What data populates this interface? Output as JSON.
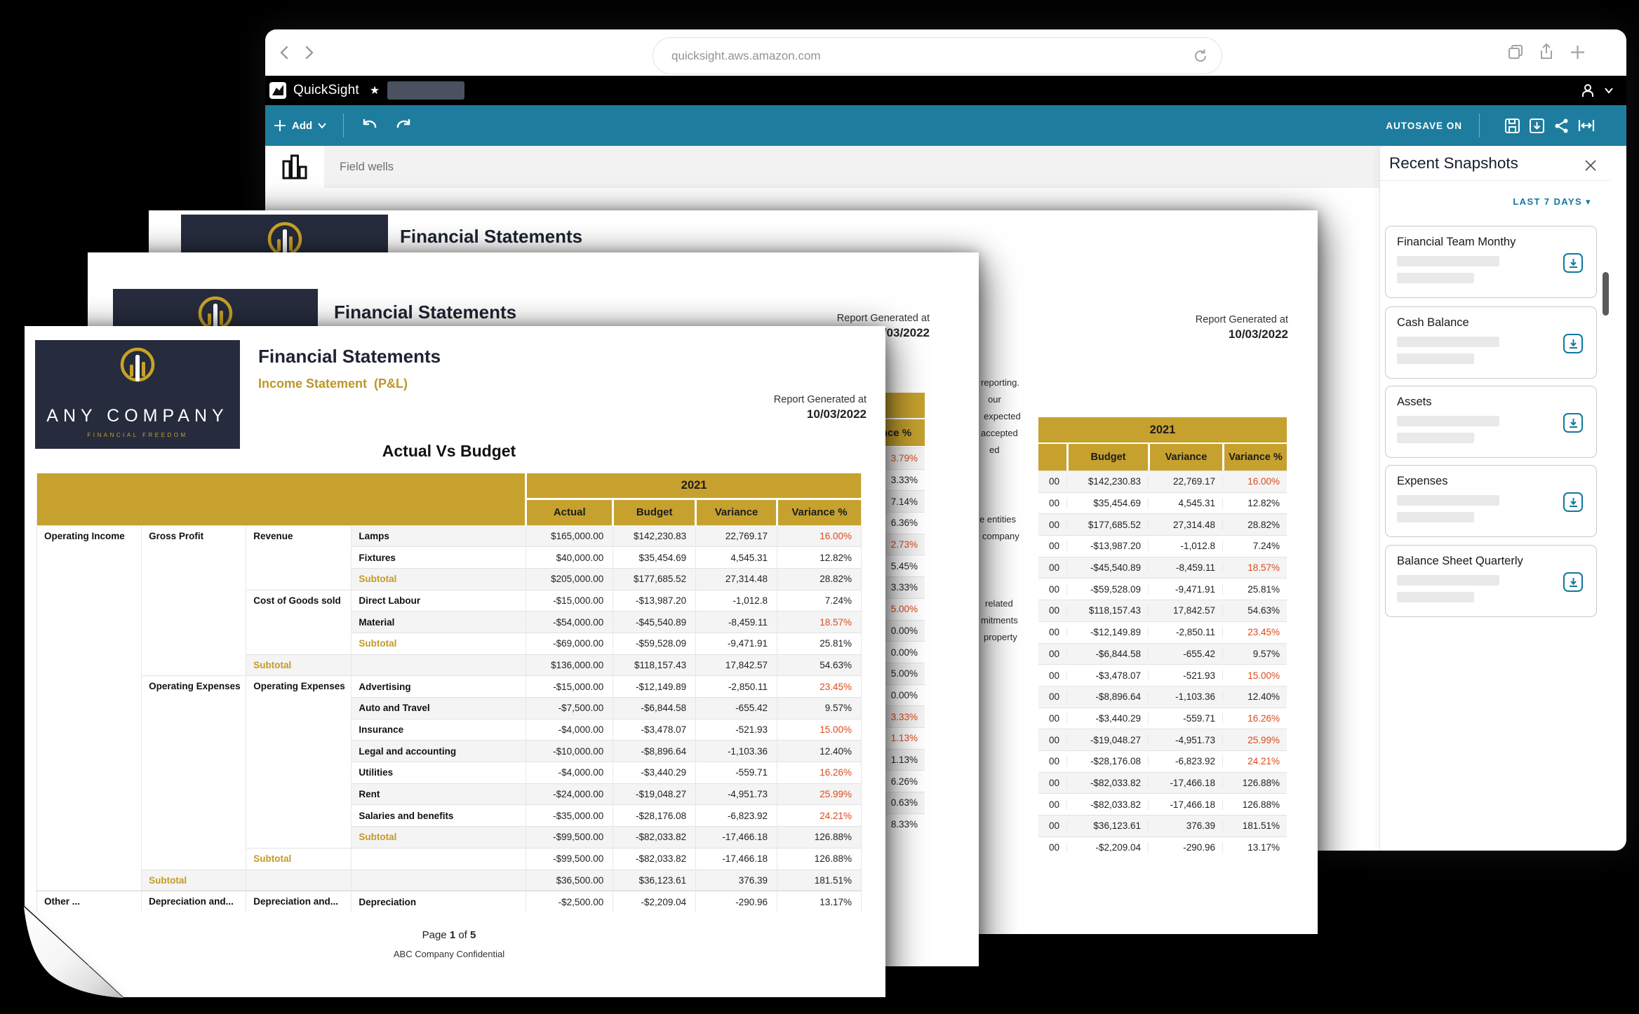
{
  "browser": {
    "url": "quicksight.aws.amazon.com"
  },
  "app_bar": {
    "app_name": "QuickSight"
  },
  "toolbar": {
    "add_label": "Add",
    "autosave_label": "AUTOSAVE ON"
  },
  "field_wells": {
    "label": "Field wells"
  },
  "snapshots_panel": {
    "title": "Recent Snapshots",
    "filter_label": "LAST 7 DAYS ▾",
    "cards": [
      {
        "title": "Financial Team Monthy"
      },
      {
        "title": "Cash Balance"
      },
      {
        "title": "Assets"
      },
      {
        "title": "Expenses"
      },
      {
        "title": "Balance Sheet Quarterly"
      }
    ]
  },
  "front_page": {
    "brand": {
      "name": "ANY COMPANY",
      "tagline": "FINANCIAL FREEDOM"
    },
    "title": "Financial Statements",
    "subtitle": "Income Statement  (P&L)",
    "generated_label": "Report Generated at",
    "generated_date": "10/03/2022",
    "table_title": "Actual Vs Budget",
    "table": {
      "year": "2021",
      "value_headers": [
        "Actual",
        "Budget",
        "Variance",
        "Variance %"
      ],
      "rows": [
        {
          "c1": {
            "t": "Operating Income",
            "span": 17
          },
          "c2": {
            "t": "Gross Profit",
            "span": 7
          },
          "c3": {
            "t": "Revenue",
            "span": 3
          },
          "item": "Lamps",
          "a": "$165,000.00",
          "b": "$142,230.83",
          "v": "22,769.17",
          "p": "16.00%",
          "red": true
        },
        {
          "item": "Fixtures",
          "a": "$40,000.00",
          "b": "$35,454.69",
          "v": "4,545.31",
          "p": "12.82%"
        },
        {
          "item": "Subtotal",
          "sub": true,
          "a": "$205,000.00",
          "b": "$177,685.52",
          "v": "27,314.48",
          "p": "28.82%"
        },
        {
          "c3": {
            "t": "Cost of Goods sold",
            "span": 3
          },
          "item": "Direct Labour",
          "a": "-$15,000.00",
          "b": "-$13,987.20",
          "v": "-1,012.8",
          "p": "7.24%"
        },
        {
          "item": "Material",
          "a": "-$54,000.00",
          "b": "-$45,540.89",
          "v": "-8,459.11",
          "p": "18.57%",
          "red": true
        },
        {
          "item": "Subtotal",
          "sub": true,
          "a": "-$69,000.00",
          "b": "-$59,528.09",
          "v": "-9,471.91",
          "p": "25.81%"
        },
        {
          "c3": {
            "t": "Subtotal",
            "span": 1,
            "sub": true
          },
          "item": "",
          "a": "$136,000.00",
          "b": "$118,157.43",
          "v": "17,842.57",
          "p": "54.63%"
        },
        {
          "c2": {
            "t": "Operating Expenses",
            "span": 9
          },
          "c3": {
            "t": "Operating Expenses",
            "span": 8
          },
          "item": "Advertising",
          "a": "-$15,000.00",
          "b": "-$12,149.89",
          "v": "-2,850.11",
          "p": "23.45%",
          "red": true
        },
        {
          "item": "Auto and Travel",
          "a": "-$7,500.00",
          "b": "-$6,844.58",
          "v": "-655.42",
          "p": "9.57%"
        },
        {
          "item": "Insurance",
          "a": "-$4,000.00",
          "b": "-$3,478.07",
          "v": "-521.93",
          "p": "15.00%",
          "red": true
        },
        {
          "item": "Legal and accounting",
          "a": "-$10,000.00",
          "b": "-$8,896.64",
          "v": "-1,103.36",
          "p": "12.40%"
        },
        {
          "item": "Utilities",
          "a": "-$4,000.00",
          "b": "-$3,440.29",
          "v": "-559.71",
          "p": "16.26%",
          "red": true
        },
        {
          "item": "Rent",
          "a": "-$24,000.00",
          "b": "-$19,048.27",
          "v": "-4,951.73",
          "p": "25.99%",
          "red": true
        },
        {
          "item": "Salaries and benefits",
          "a": "-$35,000.00",
          "b": "-$28,176.08",
          "v": "-6,823.92",
          "p": "24.21%",
          "red": true
        },
        {
          "item": "Subtotal",
          "sub": true,
          "a": "-$99,500.00",
          "b": "-$82,033.82",
          "v": "-17,466.18",
          "p": "126.88%"
        },
        {
          "c3": {
            "t": "Subtotal",
            "span": 1,
            "sub": true
          },
          "item": "",
          "a": "-$99,500.00",
          "b": "-$82,033.82",
          "v": "-17,466.18",
          "p": "126.88%"
        },
        {
          "c2": {
            "t": "Subtotal",
            "span": 1,
            "sub": true
          },
          "c3": {
            "t": "",
            "span": 1
          },
          "item": "",
          "a": "$36,500.00",
          "b": "$36,123.61",
          "v": "376.39",
          "p": "181.51%"
        },
        {
          "c1": {
            "t": "Other ...",
            "span": 1,
            "faded": true
          },
          "c2": {
            "t": "Depreciation and...",
            "span": 1
          },
          "c3": {
            "t": "Depreciation and...",
            "span": 1
          },
          "item": "Depreciation",
          "a": "-$2,500.00",
          "b": "-$2,209.04",
          "v": "-290.96",
          "p": "13.17%"
        }
      ]
    },
    "footer": {
      "page_prefix": "Page",
      "page_number": "1",
      "page_of": "of",
      "page_total": "5",
      "confidential": "ABC Company Confidential"
    }
  },
  "middle_page": {
    "title": "Financial Statements",
    "generated_label": "Report Generated at",
    "generated_date": "10/03/2022",
    "variance_header": "Variance %",
    "percent_rows": [
      {
        "p": "3.79%",
        "red": true
      },
      {
        "p": "3.33%"
      },
      {
        "p": "7.14%"
      },
      {
        "p": "6.36%"
      },
      {
        "p": "2.73%",
        "red": true
      },
      {
        "p": "5.45%"
      },
      {
        "p": "3.33%"
      },
      {
        "p": "5.00%",
        "red": true
      },
      {
        "p": "0.00%"
      },
      {
        "p": "0.00%"
      },
      {
        "p": "5.00%"
      },
      {
        "p": "0.00%"
      },
      {
        "p": "3.33%",
        "red": true
      },
      {
        "p": "1.13%",
        "red": true
      },
      {
        "p": "1.13%"
      },
      {
        "p": "6.26%"
      },
      {
        "p": "0.63%"
      },
      {
        "p": "8.33%"
      }
    ]
  },
  "back_page": {
    "title": "Financial Statements",
    "generated_label": "Report Generated at",
    "generated_date": "10/03/2022",
    "year": "2021",
    "headers": [
      "Budget",
      "Variance",
      "Variance %"
    ],
    "note_fragments": [
      "reporting.",
      "our",
      "expected",
      "accepted",
      "ed",
      "e entities",
      "company",
      "related",
      "mitments",
      "property"
    ],
    "rows": [
      {
        "cut": "00",
        "b": "$142,230.83",
        "v": "22,769.17",
        "p": "16.00%",
        "red": true
      },
      {
        "cut": "00",
        "b": "$35,454.69",
        "v": "4,545.31",
        "p": "12.82%"
      },
      {
        "cut": "00",
        "b": "$177,685.52",
        "v": "27,314.48",
        "p": "28.82%"
      },
      {
        "cut": "00",
        "b": "-$13,987.20",
        "v": "-1,012.8",
        "p": "7.24%"
      },
      {
        "cut": "00",
        "b": "-$45,540.89",
        "v": "-8,459.11",
        "p": "18.57%",
        "red": true
      },
      {
        "cut": "00",
        "b": "-$59,528.09",
        "v": "-9,471.91",
        "p": "25.81%"
      },
      {
        "cut": "00",
        "b": "$118,157.43",
        "v": "17,842.57",
        "p": "54.63%"
      },
      {
        "cut": "00",
        "b": "-$12,149.89",
        "v": "-2,850.11",
        "p": "23.45%",
        "red": true
      },
      {
        "cut": "00",
        "b": "-$6,844.58",
        "v": "-655.42",
        "p": "9.57%"
      },
      {
        "cut": "00",
        "b": "-$3,478.07",
        "v": "-521.93",
        "p": "15.00%",
        "red": true
      },
      {
        "cut": "00",
        "b": "-$8,896.64",
        "v": "-1,103.36",
        "p": "12.40%"
      },
      {
        "cut": "00",
        "b": "-$3,440.29",
        "v": "-559.71",
        "p": "16.26%",
        "red": true
      },
      {
        "cut": "00",
        "b": "-$19,048.27",
        "v": "-4,951.73",
        "p": "25.99%",
        "red": true
      },
      {
        "cut": "00",
        "b": "-$28,176.08",
        "v": "-6,823.92",
        "p": "24.21%",
        "red": true
      },
      {
        "cut": "00",
        "b": "-$82,033.82",
        "v": "-17,466.18",
        "p": "126.88%"
      },
      {
        "cut": "00",
        "b": "-$82,033.82",
        "v": "-17,466.18",
        "p": "126.88%"
      },
      {
        "cut": "00",
        "b": "$36,123.61",
        "v": "376.39",
        "p": "181.51%"
      },
      {
        "cut": "00",
        "b": "-$2,209.04",
        "v": "-290.96",
        "p": "13.17%"
      }
    ]
  }
}
